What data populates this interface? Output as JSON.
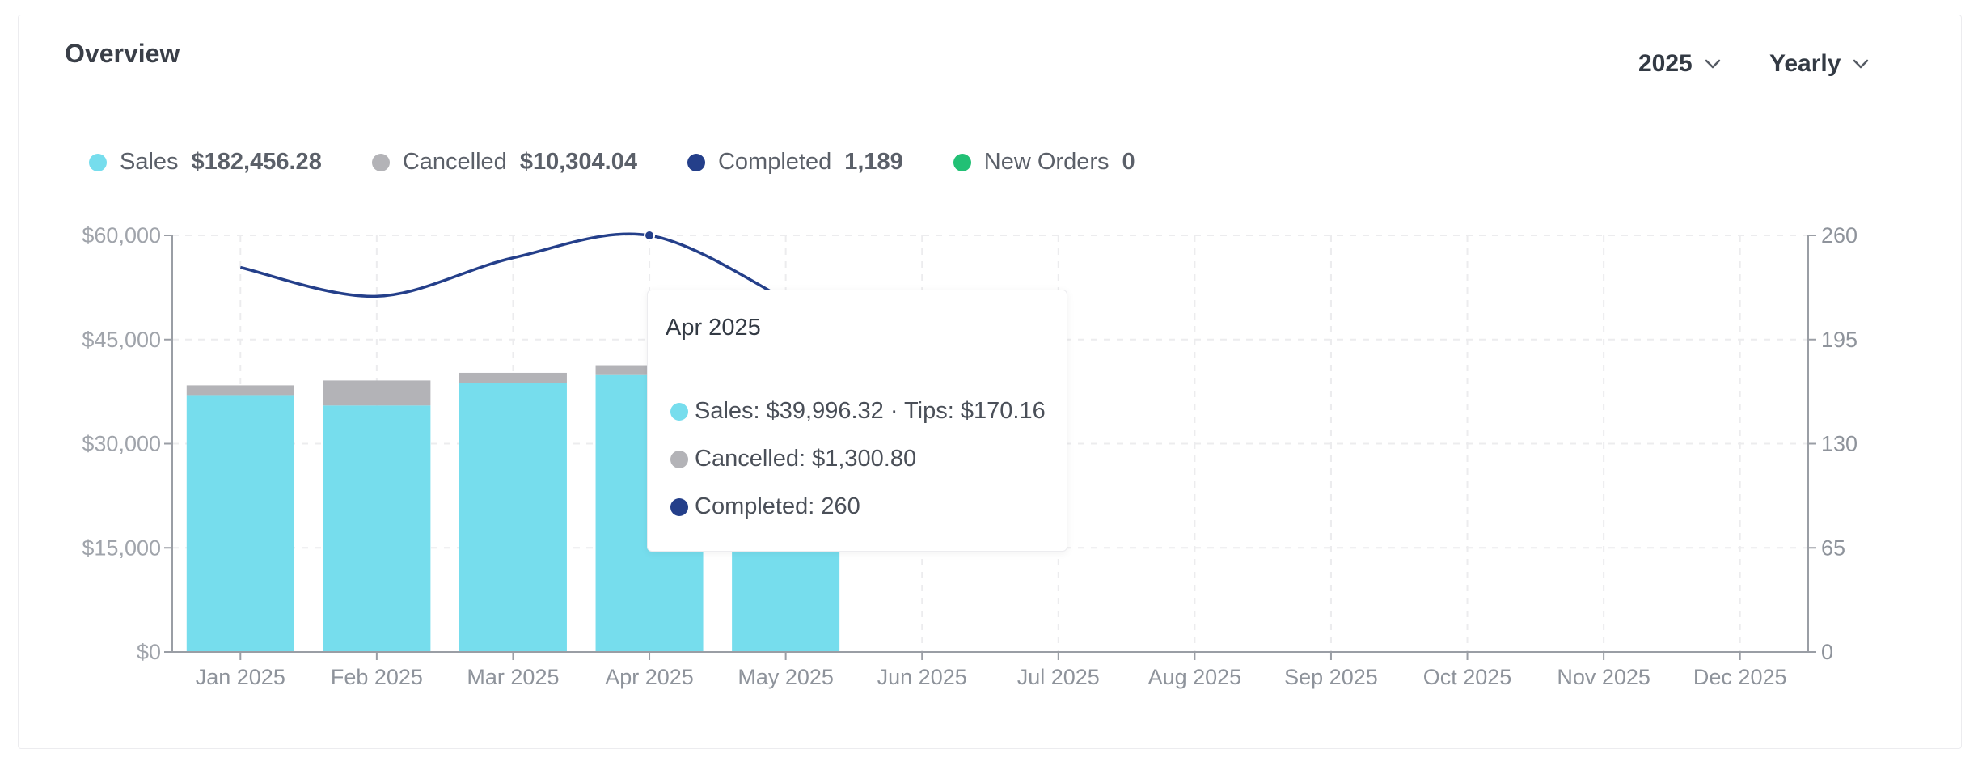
{
  "header": {
    "title": "Overview",
    "year_select": "2025",
    "period_select": "Yearly"
  },
  "colors": {
    "sales": "#76dded",
    "cancelled": "#b3b3b7",
    "completed": "#243f8a",
    "new_orders": "#22c075"
  },
  "legend": [
    {
      "key": "sales",
      "label": "Sales",
      "value": "$182,456.28"
    },
    {
      "key": "cancelled",
      "label": "Cancelled",
      "value": "$10,304.04"
    },
    {
      "key": "completed",
      "label": "Completed",
      "value": "1,189"
    },
    {
      "key": "new_orders",
      "label": "New Orders",
      "value": "0"
    }
  ],
  "tooltip": {
    "title": "Apr 2025",
    "sales_line": "Sales: $39,996.32 · Tips: $170.16",
    "cancelled_line": "Cancelled: $1,300.80",
    "completed_line": "Completed: 260"
  },
  "chart_data": {
    "type": "bar",
    "stacked": true,
    "categories": [
      "Jan 2025",
      "Feb 2025",
      "Mar 2025",
      "Apr 2025",
      "May 2025",
      "Jun 2025",
      "Jul 2025",
      "Aug 2025",
      "Sep 2025",
      "Oct 2025",
      "Nov 2025",
      "Dec 2025"
    ],
    "series": [
      {
        "name": "Sales",
        "axis": "left",
        "type": "bar",
        "values": [
          37000,
          35500,
          38700,
          39996.32,
          31200,
          0,
          0,
          0,
          0,
          0,
          0,
          0
        ]
      },
      {
        "name": "Cancelled",
        "axis": "left",
        "type": "bar",
        "values": [
          1400,
          3600,
          1500,
          1300.8,
          2500,
          0,
          0,
          0,
          0,
          0,
          0,
          0
        ]
      },
      {
        "name": "Completed",
        "axis": "right",
        "type": "line",
        "values": [
          240,
          222,
          246,
          260,
          220,
          null,
          null,
          null,
          null,
          null,
          null,
          null
        ]
      }
    ],
    "y_left": {
      "ylim": [
        0,
        60000
      ],
      "ticks": [
        "$0",
        "$15,000",
        "$30,000",
        "$45,000",
        "$60,000"
      ]
    },
    "y_right": {
      "ylim": [
        0,
        260
      ],
      "ticks": [
        "0",
        "65",
        "130",
        "195",
        "260"
      ]
    },
    "grid": true,
    "hover_index": 3
  }
}
